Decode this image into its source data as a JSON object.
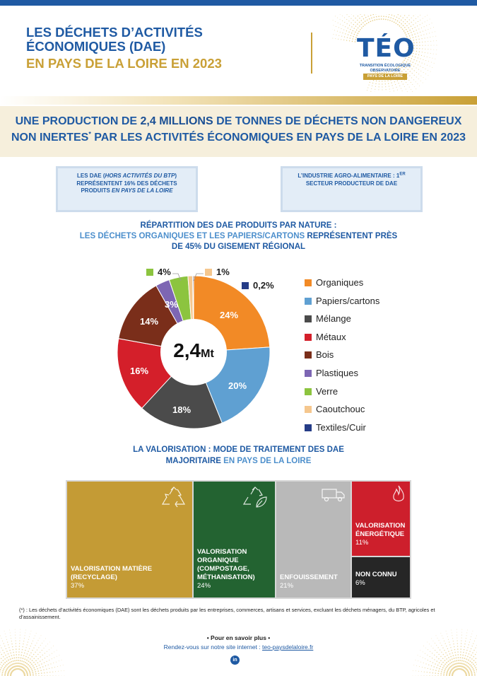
{
  "header": {
    "title_line1": "LES DÉCHETS D’ACTIVITÉS",
    "title_line2": "ÉCONOMIQUES (DAE)",
    "title_line3": "EN PAYS DE LA LOIRE EN 2023",
    "logo_text": "TÉO",
    "logo_sub1": "TRANSITION ÉCOLOGIQUE",
    "logo_sub2": "OBSERVATOIRE",
    "logo_badge": "PAYS DE LA LOIRE"
  },
  "banner": {
    "line1_a": "UNE PRODUCTION DE ",
    "line1_b": "2,4 MILLIONS",
    "line1_c": " DE TONNES DE DÉCHETS NON DANGEREUX",
    "line2_a": "NON INERTES",
    "line2_sup": "*",
    "line2_b": " PAR LES ACTIVITÉS ÉCONOMIQUES EN PAYS DE LA LOIRE EN 2023"
  },
  "box1": {
    "t1": "LES DAE (",
    "t2": "HORS ACTIVITÉS DU BTP",
    "t3": ") REPRÉSENTENT 16% DES DÉCHETS PRODUITS ",
    "t4": "EN PAYS DE LA LOIRE"
  },
  "box2": {
    "t1": "L’INDUSTRIE AGRO-ALIMENTAIRE : 1",
    "sup": "ER",
    "t2": " SECTEUR PRODUCTEUR DE DAE"
  },
  "pie_section": {
    "title1": "RÉPARTITION DES DAE PRODUITS PAR NATURE :",
    "title2a": "LES DÉCHETS ORGANIQUES ET LES PAPIERS/CARTONS ",
    "title2b": "REPRÉSENTENT PRÈS",
    "title3": "DE 45% DU GISEMENT RÉGIONAL",
    "center_value": "2,4",
    "center_unit": "Mt"
  },
  "chart_data": {
    "type": "pie",
    "title": "",
    "slices": [
      {
        "label": "Organiques",
        "value": 24,
        "display": "24%",
        "color": "#f28a26"
      },
      {
        "label": "Papiers/cartons",
        "value": 20,
        "display": "20%",
        "color": "#5fa0d2"
      },
      {
        "label": "Mélange",
        "value": 18,
        "display": "18%",
        "color": "#4b4b4b"
      },
      {
        "label": "Métaux",
        "value": 16,
        "display": "16%",
        "color": "#d41f2a"
      },
      {
        "label": "Bois",
        "value": 14,
        "display": "14%",
        "color": "#7a2e1a"
      },
      {
        "label": "Plastiques",
        "value": 3,
        "display": "3%",
        "color": "#7d66b3"
      },
      {
        "label": "Verre",
        "value": 4,
        "display": "4%",
        "color": "#8cc43f"
      },
      {
        "label": "Caoutchouc",
        "value": 1,
        "display": "1%",
        "color": "#f5c78e"
      },
      {
        "label": "Textiles/Cuir",
        "value": 0.2,
        "display": "0,2%",
        "color": "#253c87"
      }
    ]
  },
  "treat_section": {
    "title1": "LA VALORISATION : MODE DE TRAITEMENT DES DAE",
    "title2a": "MAJORITAIRE",
    "title2b": " EN PAYS DE LA LOIRE"
  },
  "treemap": [
    {
      "label": "VALORISATION MATIÈRE (RECYCLAGE)",
      "pct": "37%",
      "value": 37,
      "color": "#c49b35",
      "icon": "recycle-icon"
    },
    {
      "label": "VALORISATION ORGANIQUE (COMPOSTAGE, MÉTHANISATION)",
      "pct": "24%",
      "value": 24,
      "color": "#236331",
      "icon": "recycle-leaf-icon"
    },
    {
      "label": "ENFOUISSEMENT",
      "pct": "21%",
      "value": 21,
      "color": "#b9b9b9",
      "icon": "truck-icon"
    },
    {
      "label": "VALORISATION ÉNERGÉTIQUE",
      "pct": "11%",
      "value": 11,
      "color": "#cd1f2c",
      "icon": "flame-icon"
    },
    {
      "label": "NON CONNU",
      "pct": "6%",
      "value": 6,
      "color": "#262626",
      "icon": ""
    }
  ],
  "footer": {
    "footnote": "(*) : Les déchets d’activités économiques (DAE) sont les déchets produits par les entreprises, commerces, artisans et services, excluant les déchets ménagers, du BTP, agricoles et d’assainissement.",
    "more": "Pour en savoir plus",
    "site_prefix": "Rendez-vous sur notre site internet : ",
    "site_link": "teo-paysdelaloire.fr",
    "linkedin": "in"
  }
}
